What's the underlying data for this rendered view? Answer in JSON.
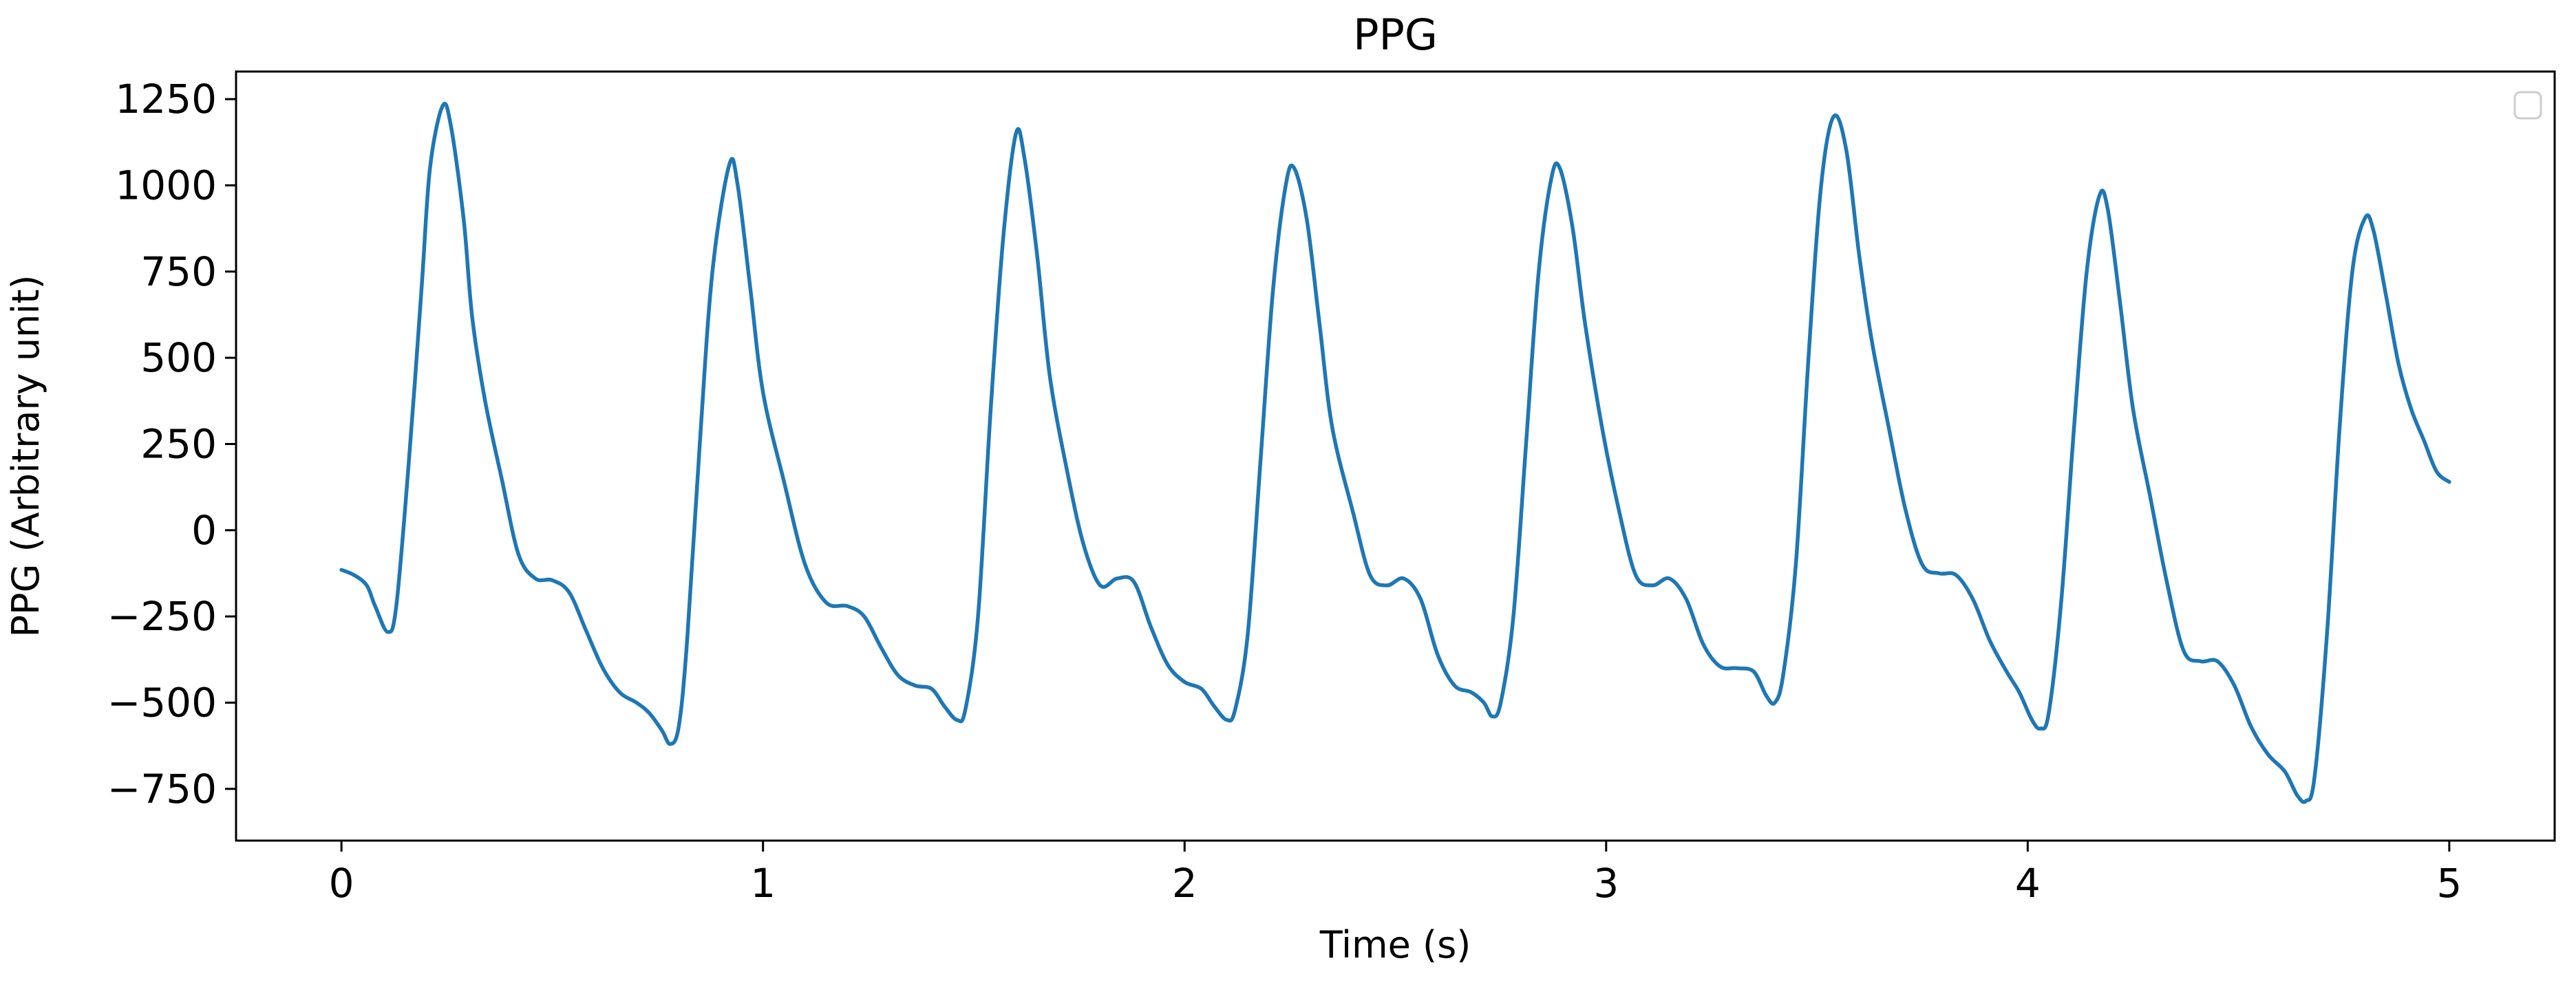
{
  "chart_data": {
    "type": "line",
    "title": "PPG",
    "xlabel": "Time (s)",
    "ylabel": "PPG (Arbitrary unit)",
    "xlim": [
      -0.25,
      5.25
    ],
    "ylim": [
      -900,
      1330
    ],
    "xticks": [
      0,
      1,
      2,
      3,
      4,
      5
    ],
    "yticks": [
      -750,
      -500,
      -250,
      0,
      250,
      500,
      750,
      1000,
      1250
    ],
    "grid": false,
    "legend": "top-right (empty)",
    "series": [
      {
        "color": "#1f77b4",
        "points": [
          [
            0.0,
            -115
          ],
          [
            0.03,
            -130
          ],
          [
            0.06,
            -160
          ],
          [
            0.08,
            -220
          ],
          [
            0.11,
            -295
          ],
          [
            0.13,
            -220
          ],
          [
            0.16,
            200
          ],
          [
            0.19,
            700
          ],
          [
            0.21,
            1050
          ],
          [
            0.24,
            1230
          ],
          [
            0.26,
            1170
          ],
          [
            0.29,
            900
          ],
          [
            0.31,
            620
          ],
          [
            0.34,
            380
          ],
          [
            0.38,
            150
          ],
          [
            0.42,
            -70
          ],
          [
            0.46,
            -140
          ],
          [
            0.5,
            -145
          ],
          [
            0.54,
            -180
          ],
          [
            0.58,
            -290
          ],
          [
            0.62,
            -400
          ],
          [
            0.66,
            -470
          ],
          [
            0.7,
            -500
          ],
          [
            0.73,
            -530
          ],
          [
            0.76,
            -580
          ],
          [
            0.78,
            -620
          ],
          [
            0.8,
            -570
          ],
          [
            0.82,
            -320
          ],
          [
            0.85,
            250
          ],
          [
            0.88,
            750
          ],
          [
            0.92,
            1060
          ],
          [
            0.94,
            1000
          ],
          [
            0.97,
            700
          ],
          [
            1.0,
            400
          ],
          [
            1.05,
            140
          ],
          [
            1.1,
            -100
          ],
          [
            1.15,
            -210
          ],
          [
            1.2,
            -220
          ],
          [
            1.24,
            -250
          ],
          [
            1.28,
            -340
          ],
          [
            1.32,
            -420
          ],
          [
            1.36,
            -450
          ],
          [
            1.4,
            -460
          ],
          [
            1.43,
            -510
          ],
          [
            1.46,
            -550
          ],
          [
            1.48,
            -520
          ],
          [
            1.51,
            -250
          ],
          [
            1.54,
            350
          ],
          [
            1.57,
            850
          ],
          [
            1.6,
            1150
          ],
          [
            1.62,
            1080
          ],
          [
            1.65,
            800
          ],
          [
            1.68,
            450
          ],
          [
            1.72,
            180
          ],
          [
            1.76,
            -40
          ],
          [
            1.8,
            -160
          ],
          [
            1.84,
            -140
          ],
          [
            1.88,
            -150
          ],
          [
            1.92,
            -280
          ],
          [
            1.96,
            -390
          ],
          [
            2.0,
            -440
          ],
          [
            2.04,
            -460
          ],
          [
            2.07,
            -510
          ],
          [
            2.1,
            -550
          ],
          [
            2.12,
            -520
          ],
          [
            2.15,
            -300
          ],
          [
            2.18,
            200
          ],
          [
            2.21,
            700
          ],
          [
            2.24,
            1000
          ],
          [
            2.26,
            1050
          ],
          [
            2.29,
            900
          ],
          [
            2.32,
            600
          ],
          [
            2.35,
            300
          ],
          [
            2.4,
            50
          ],
          [
            2.44,
            -130
          ],
          [
            2.48,
            -160
          ],
          [
            2.52,
            -140
          ],
          [
            2.56,
            -200
          ],
          [
            2.6,
            -360
          ],
          [
            2.64,
            -450
          ],
          [
            2.68,
            -470
          ],
          [
            2.71,
            -500
          ],
          [
            2.73,
            -540
          ],
          [
            2.75,
            -500
          ],
          [
            2.78,
            -250
          ],
          [
            2.81,
            250
          ],
          [
            2.84,
            750
          ],
          [
            2.87,
            1020
          ],
          [
            2.89,
            1050
          ],
          [
            2.92,
            880
          ],
          [
            2.95,
            600
          ],
          [
            2.99,
            300
          ],
          [
            3.03,
            60
          ],
          [
            3.07,
            -130
          ],
          [
            3.11,
            -160
          ],
          [
            3.15,
            -140
          ],
          [
            3.19,
            -200
          ],
          [
            3.23,
            -330
          ],
          [
            3.27,
            -395
          ],
          [
            3.31,
            -400
          ],
          [
            3.35,
            -410
          ],
          [
            3.38,
            -480
          ],
          [
            3.4,
            -500
          ],
          [
            3.42,
            -420
          ],
          [
            3.45,
            -100
          ],
          [
            3.48,
            500
          ],
          [
            3.51,
            1000
          ],
          [
            3.54,
            1200
          ],
          [
            3.57,
            1100
          ],
          [
            3.6,
            800
          ],
          [
            3.63,
            550
          ],
          [
            3.67,
            300
          ],
          [
            3.71,
            60
          ],
          [
            3.75,
            -100
          ],
          [
            3.79,
            -125
          ],
          [
            3.83,
            -130
          ],
          [
            3.87,
            -200
          ],
          [
            3.91,
            -320
          ],
          [
            3.95,
            -410
          ],
          [
            3.98,
            -470
          ],
          [
            4.01,
            -550
          ],
          [
            4.03,
            -575
          ],
          [
            4.05,
            -530
          ],
          [
            4.08,
            -200
          ],
          [
            4.11,
            300
          ],
          [
            4.14,
            750
          ],
          [
            4.17,
            970
          ],
          [
            4.19,
            930
          ],
          [
            4.22,
            650
          ],
          [
            4.25,
            350
          ],
          [
            4.29,
            100
          ],
          [
            4.33,
            -150
          ],
          [
            4.37,
            -350
          ],
          [
            4.41,
            -380
          ],
          [
            4.45,
            -380
          ],
          [
            4.49,
            -450
          ],
          [
            4.53,
            -570
          ],
          [
            4.57,
            -650
          ],
          [
            4.61,
            -700
          ],
          [
            4.64,
            -770
          ],
          [
            4.66,
            -785
          ],
          [
            4.68,
            -720
          ],
          [
            4.71,
            -300
          ],
          [
            4.74,
            300
          ],
          [
            4.77,
            750
          ],
          [
            4.8,
            905
          ],
          [
            4.82,
            870
          ],
          [
            4.85,
            680
          ],
          [
            4.88,
            480
          ],
          [
            4.91,
            350
          ],
          [
            4.94,
            260
          ],
          [
            4.97,
            170
          ],
          [
            5.0,
            140
          ]
        ]
      }
    ]
  }
}
